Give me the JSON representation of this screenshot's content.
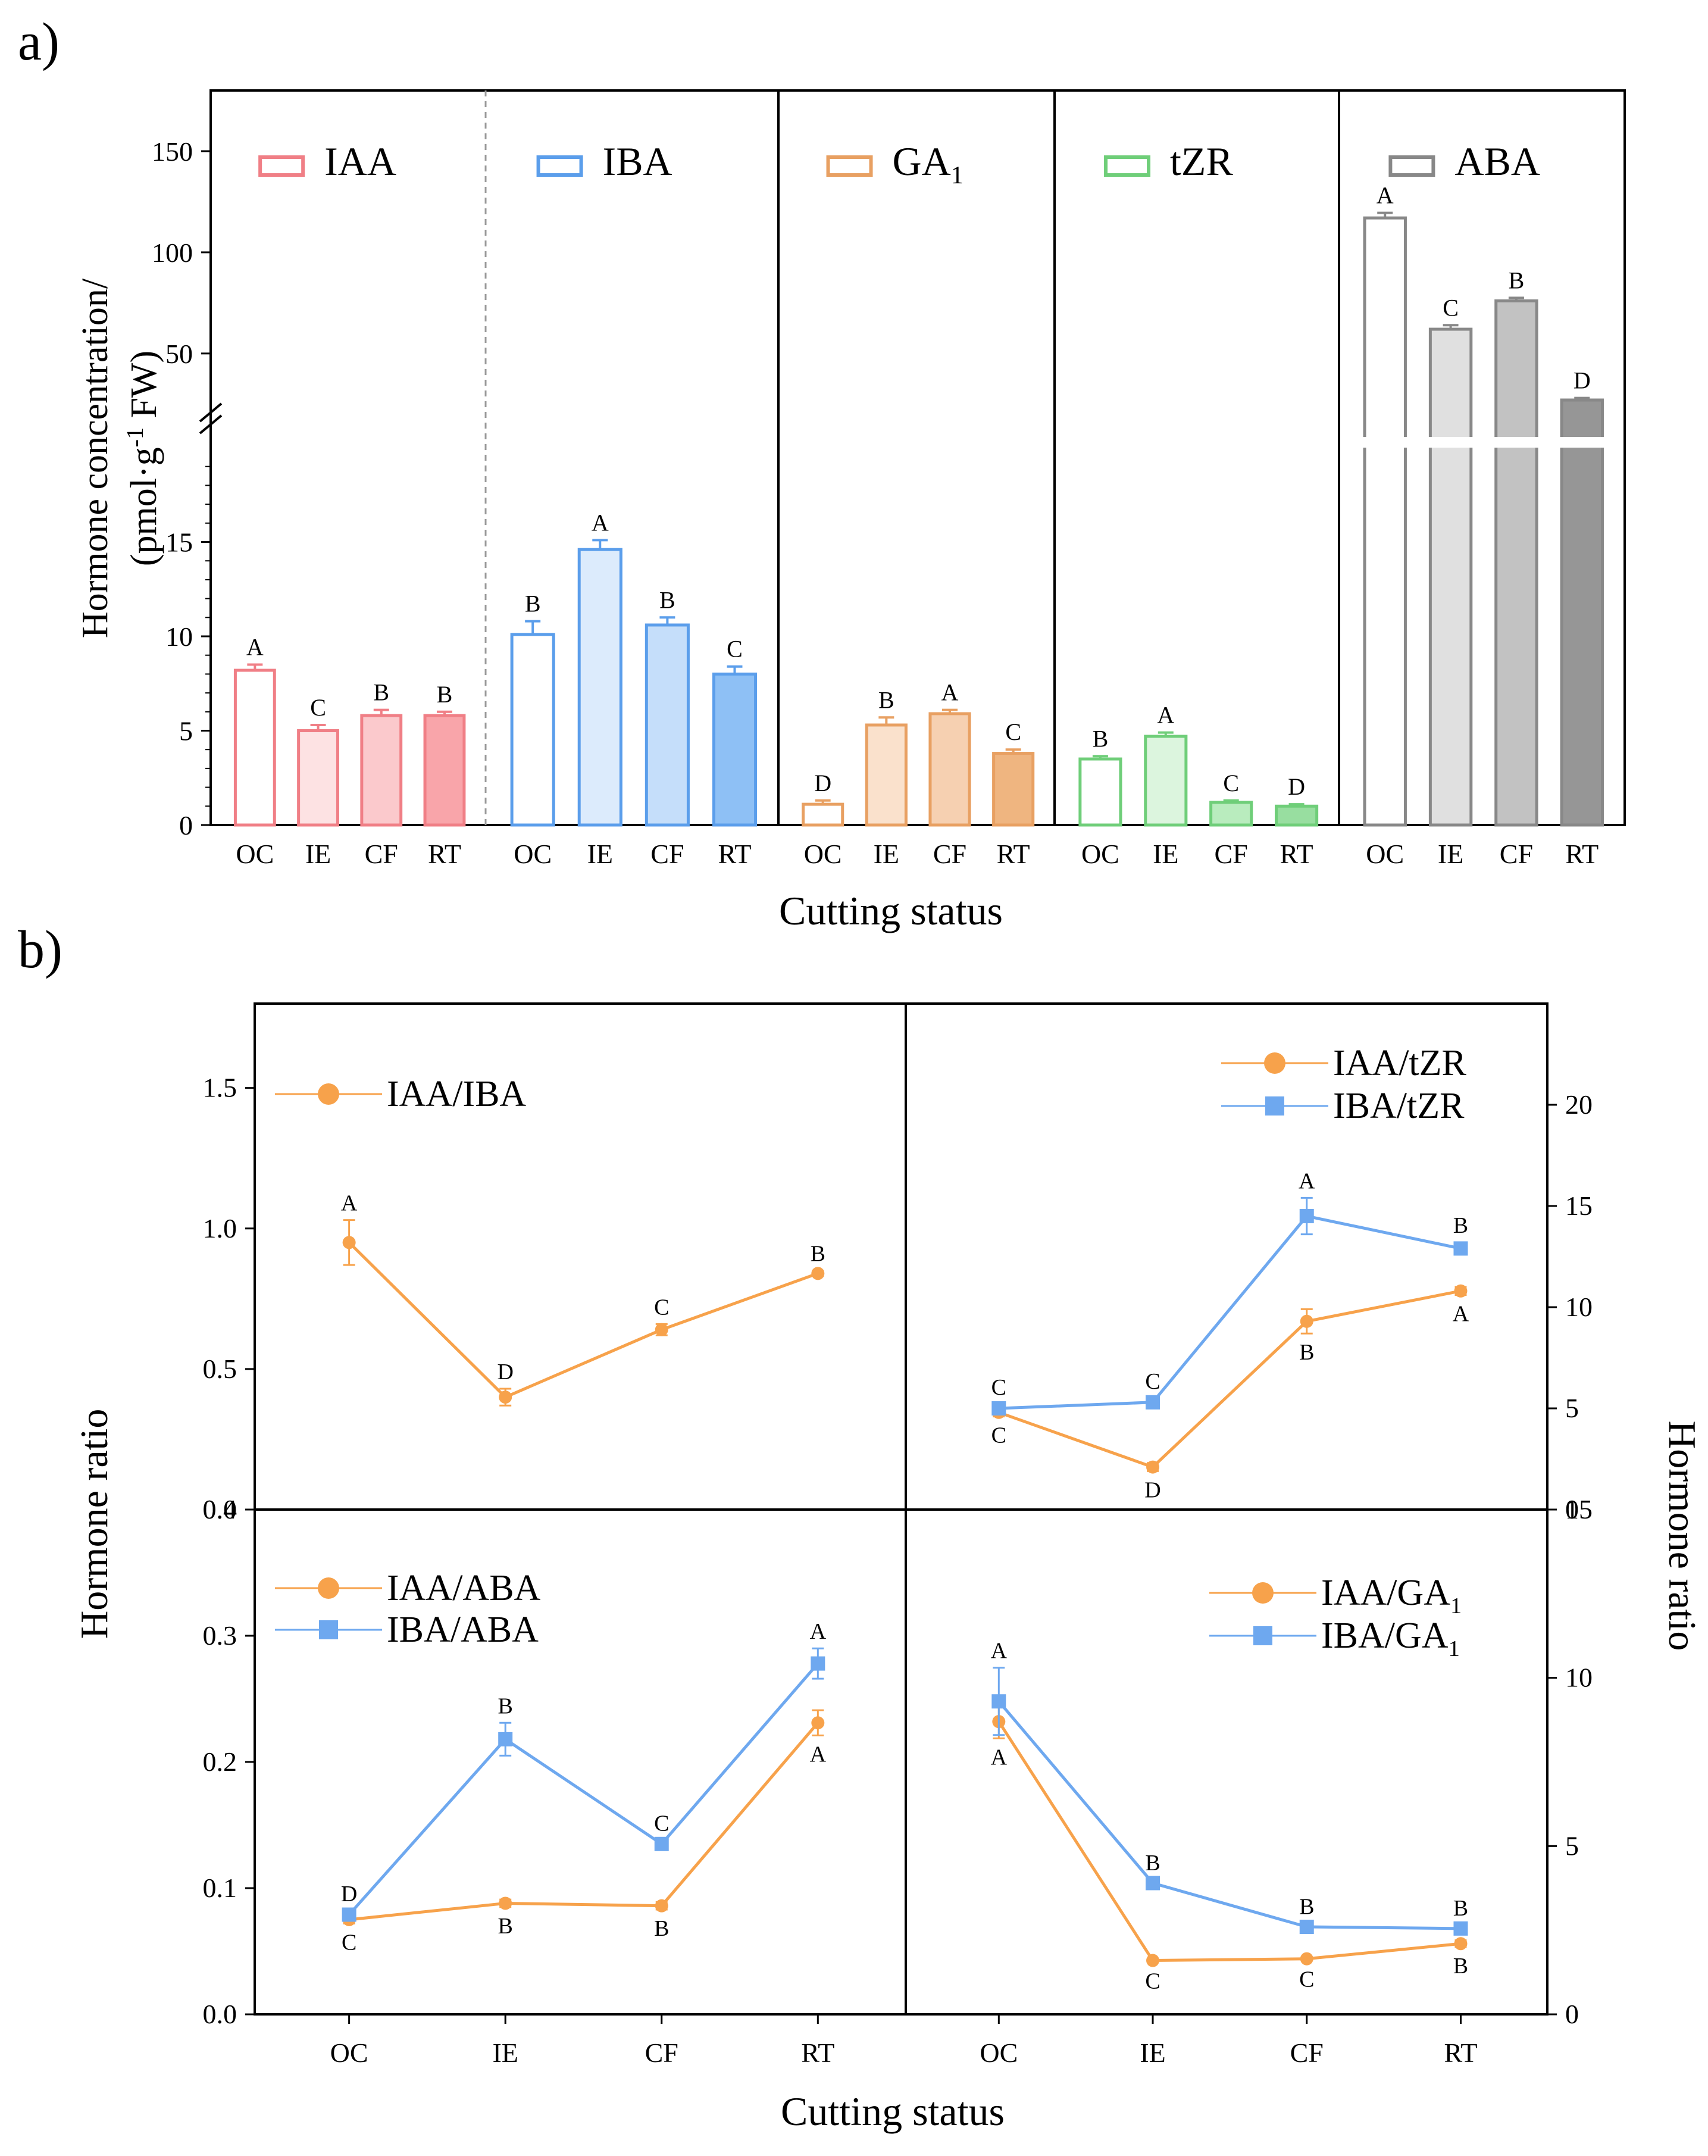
{
  "panel_labels": {
    "a": "a)",
    "b": "b)"
  },
  "chart_data": [
    {
      "id": "a",
      "type": "bar",
      "title": "",
      "xlabel": "Cutting status",
      "ylabel_line1": "Hormone concentration/",
      "ylabel_line2": "(pmol·g⁻¹ FW)",
      "categories": [
        "OC",
        "IE",
        "CF",
        "RT"
      ],
      "y_lower": {
        "range": [
          0,
          20
        ],
        "ticks": [
          0,
          5,
          10,
          15
        ]
      },
      "y_upper": {
        "range": [
          17,
          180
        ],
        "ticks": [
          50,
          100,
          150
        ]
      },
      "axis_break": true,
      "groups": [
        {
          "name": "IAA",
          "base": "IAA",
          "sub": "",
          "color": "#f07f86",
          "fills": [
            "#ffffff",
            "#fde2e3",
            "#fbc9cc",
            "#f9a5aa"
          ],
          "values": [
            8.2,
            5.0,
            5.8,
            5.8
          ],
          "errors": [
            0.3,
            0.3,
            0.3,
            0.2
          ],
          "letters": [
            "A",
            "C",
            "B",
            "B"
          ]
        },
        {
          "name": "IBA",
          "base": "IBA",
          "sub": "",
          "color": "#5b9eeb",
          "fills": [
            "#ffffff",
            "#dcebfc",
            "#c5defa",
            "#8ec0f5"
          ],
          "values": [
            10.1,
            14.6,
            10.6,
            8.0
          ],
          "errors": [
            0.7,
            0.5,
            0.4,
            0.4
          ],
          "letters": [
            "B",
            "A",
            "B",
            "C"
          ]
        },
        {
          "name": "GA1",
          "base": "GA",
          "sub": "1",
          "color": "#e8a062",
          "fills": [
            "#ffffff",
            "#fae1cc",
            "#f6d0b1",
            "#efb580"
          ],
          "values": [
            1.1,
            5.3,
            5.9,
            3.8
          ],
          "errors": [
            0.2,
            0.4,
            0.2,
            0.2
          ],
          "letters": [
            "D",
            "B",
            "A",
            "C"
          ]
        },
        {
          "name": "tZR",
          "base": "tZR",
          "sub": "",
          "color": "#6fce79",
          "fills": [
            "#ffffff",
            "#dcf5de",
            "#b9ecbe",
            "#98dea0"
          ],
          "values": [
            3.5,
            4.7,
            1.2,
            1.0
          ],
          "errors": [
            0.15,
            0.2,
            0.1,
            0.1
          ],
          "letters": [
            "B",
            "A",
            "C",
            "D"
          ]
        },
        {
          "name": "ABA",
          "base": "ABA",
          "sub": "",
          "color": "#888888",
          "fills": [
            "#ffffff",
            "#e0e0e0",
            "#c2c2c2",
            "#969696"
          ],
          "values": [
            117,
            62,
            76,
            27
          ],
          "errors": [
            2.5,
            2.0,
            1.5,
            1.0
          ],
          "letters": [
            "A",
            "C",
            "B",
            "D"
          ]
        }
      ]
    },
    {
      "id": "b",
      "type": "line",
      "xlabel": "Cutting status",
      "ylabel_left": "Hormone ratio",
      "ylabel_right": "Hormone ratio",
      "categories": [
        "OC",
        "IE",
        "CF",
        "RT"
      ],
      "subplots": [
        {
          "position": "top-left",
          "axis": "left",
          "ylim": [
            0,
            1.8
          ],
          "ticks": [
            "0.0",
            "0.5",
            "1.0",
            "1.5"
          ],
          "series": [
            {
              "name": "IAA/IBA",
              "base": "IAA/IBA",
              "sub": "",
              "marker": "circle",
              "color": "#f7a24b",
              "values": [
                0.95,
                0.4,
                0.64,
                0.84
              ],
              "errors": [
                0.08,
                0.03,
                0.02,
                0.01
              ],
              "letters": [
                "A",
                "D",
                "C",
                "B"
              ],
              "letter_pos": [
                "above",
                "above",
                "above",
                "above"
              ]
            }
          ]
        },
        {
          "position": "top-right",
          "axis": "right",
          "ylim": [
            0,
            25
          ],
          "ticks": [
            "0",
            "5",
            "10",
            "15",
            "20"
          ],
          "series": [
            {
              "name": "IAA/tZR",
              "base": "IAA/tZR",
              "sub": "",
              "marker": "circle",
              "color": "#f7a24b",
              "values": [
                4.8,
                2.1,
                9.3,
                10.8
              ],
              "errors": [
                0.2,
                0.2,
                0.6,
                0.2
              ],
              "letters": [
                "C",
                "D",
                "B",
                "A"
              ],
              "letter_pos": [
                "below",
                "below",
                "below",
                "below"
              ]
            },
            {
              "name": "IBA/tZR",
              "base": "IBA/tZR",
              "sub": "",
              "marker": "square",
              "color": "#6ea8ef",
              "values": [
                5.0,
                5.3,
                14.5,
                12.9
              ],
              "errors": [
                0.2,
                0.2,
                0.9,
                0.3
              ],
              "letters": [
                "C",
                "C",
                "A",
                "B"
              ],
              "letter_pos": [
                "above",
                "above",
                "above",
                "above"
              ]
            }
          ]
        },
        {
          "position": "bottom-left",
          "axis": "left",
          "ylim": [
            0,
            0.4
          ],
          "ticks": [
            "0.0",
            "0.1",
            "0.2",
            "0.3",
            "0.4"
          ],
          "series": [
            {
              "name": "IAA/ABA",
              "base": "IAA/ABA",
              "sub": "",
              "marker": "circle",
              "color": "#f7a24b",
              "values": [
                0.075,
                0.088,
                0.086,
                0.231
              ],
              "errors": [
                0.003,
                0.003,
                0.003,
                0.01
              ],
              "letters": [
                "C",
                "B",
                "B",
                "A"
              ],
              "letter_pos": [
                "below",
                "below",
                "below",
                "below"
              ]
            },
            {
              "name": "IBA/ABA",
              "base": "IBA/ABA",
              "sub": "",
              "marker": "square",
              "color": "#6ea8ef",
              "values": [
                0.079,
                0.218,
                0.135,
                0.278
              ],
              "errors": [
                0.003,
                0.013,
                0.003,
                0.012
              ],
              "letters": [
                "D",
                "B",
                "C",
                "A"
              ],
              "letter_pos": [
                "above",
                "above",
                "above",
                "above"
              ]
            }
          ]
        },
        {
          "position": "bottom-right",
          "axis": "right",
          "ylim": [
            0,
            15
          ],
          "ticks": [
            "0",
            "5",
            "10",
            "15"
          ],
          "series": [
            {
              "name": "IAA/GA1",
              "base": "IAA/GA",
              "sub": "1",
              "marker": "circle",
              "color": "#f7a24b",
              "values": [
                8.7,
                1.6,
                1.65,
                2.1
              ],
              "errors": [
                0.5,
                0.05,
                0.05,
                0.1
              ],
              "letters": [
                "A",
                "C",
                "C",
                "B"
              ],
              "letter_pos": [
                "below",
                "below",
                "below",
                "below"
              ]
            },
            {
              "name": "IBA/GA1",
              "base": "IBA/GA",
              "sub": "1",
              "marker": "square",
              "color": "#6ea8ef",
              "values": [
                9.3,
                3.9,
                2.6,
                2.55
              ],
              "errors": [
                1.0,
                0.1,
                0.1,
                0.1
              ],
              "letters": [
                "A",
                "B",
                "B",
                "B"
              ],
              "letter_pos": [
                "above",
                "above",
                "above",
                "above"
              ]
            }
          ]
        }
      ]
    }
  ]
}
